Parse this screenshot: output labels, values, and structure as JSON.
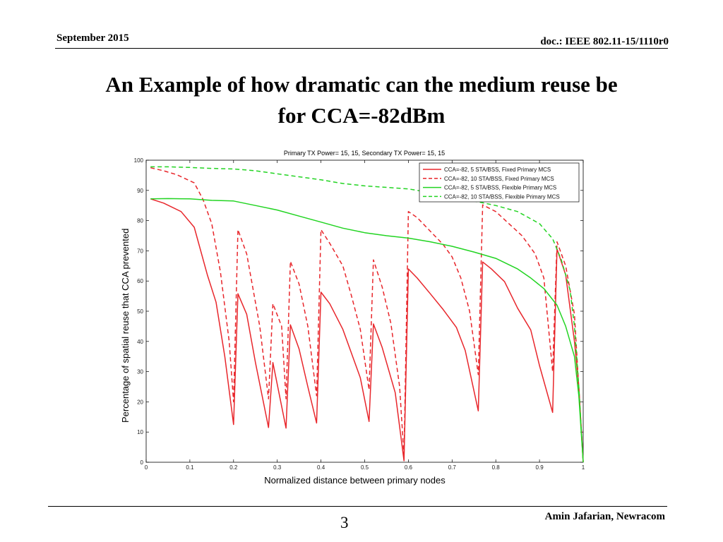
{
  "header": {
    "date": "September 2015",
    "doc": "doc.: IEEE 802.11-15/1110r0"
  },
  "slide": {
    "title_line1": "An Example of how dramatic can the medium reuse be",
    "title_line2": "for CCA=-82dBm"
  },
  "footer": {
    "page": "3",
    "author": "Amin Jafarian, Newracom"
  },
  "chart_data": {
    "type": "line",
    "title": "Primary TX Power= 15, 15, Secondary TX Power= 15, 15",
    "xlabel": "Normalized distance between primary nodes",
    "ylabel": "Percentage of spatial reuse that CCA prevented",
    "xlim": [
      0,
      1
    ],
    "ylim": [
      0,
      100
    ],
    "xticks": [
      0,
      0.1,
      0.2,
      0.3,
      0.4,
      0.5,
      0.6,
      0.7,
      0.8,
      0.9,
      1
    ],
    "yticks": [
      0,
      10,
      20,
      30,
      40,
      50,
      60,
      70,
      80,
      90,
      100
    ],
    "grid": false,
    "legend_position": "top-right",
    "series": [
      {
        "name": "CCA=-82, 5 STA/BSS, Fixed Primary MCS",
        "color": "#e8262b",
        "dash": "solid",
        "points": [
          [
            0.01,
            87.2
          ],
          [
            0.04,
            85.8
          ],
          [
            0.08,
            83
          ],
          [
            0.11,
            77.8
          ],
          [
            0.14,
            62
          ],
          [
            0.16,
            53
          ],
          [
            0.18,
            35
          ],
          [
            0.2,
            12.5
          ],
          [
            0.21,
            55.8
          ],
          [
            0.23,
            49
          ],
          [
            0.25,
            33
          ],
          [
            0.28,
            11.5
          ],
          [
            0.29,
            33
          ],
          [
            0.32,
            11.3
          ],
          [
            0.33,
            45.5
          ],
          [
            0.35,
            37.5
          ],
          [
            0.37,
            25
          ],
          [
            0.39,
            13
          ],
          [
            0.4,
            56.3
          ],
          [
            0.42,
            52.5
          ],
          [
            0.45,
            44
          ],
          [
            0.49,
            28
          ],
          [
            0.51,
            13.5
          ],
          [
            0.52,
            45.8
          ],
          [
            0.54,
            38
          ],
          [
            0.57,
            23
          ],
          [
            0.59,
            0.5
          ],
          [
            0.6,
            64
          ],
          [
            0.62,
            61
          ],
          [
            0.65,
            55.8
          ],
          [
            0.68,
            50.5
          ],
          [
            0.71,
            44.6
          ],
          [
            0.73,
            37
          ],
          [
            0.76,
            17
          ],
          [
            0.77,
            66.3
          ],
          [
            0.79,
            64
          ],
          [
            0.82,
            59.8
          ],
          [
            0.85,
            51
          ],
          [
            0.88,
            43.8
          ],
          [
            0.9,
            32
          ],
          [
            0.93,
            16.5
          ],
          [
            0.94,
            70.6
          ],
          [
            0.96,
            62
          ],
          [
            0.98,
            40
          ],
          [
            0.99,
            25
          ],
          [
            1,
            0
          ]
        ]
      },
      {
        "name": "CCA=-82, 10 STA/BSS, Fixed Primary MCS",
        "color": "#e8262b",
        "dash": "dashed",
        "points": [
          [
            0.01,
            97.5
          ],
          [
            0.04,
            96.5
          ],
          [
            0.07,
            95.2
          ],
          [
            0.11,
            92.5
          ],
          [
            0.13,
            87
          ],
          [
            0.15,
            79
          ],
          [
            0.17,
            63
          ],
          [
            0.19,
            40
          ],
          [
            0.2,
            20
          ],
          [
            0.21,
            77
          ],
          [
            0.23,
            69
          ],
          [
            0.26,
            45
          ],
          [
            0.28,
            21
          ],
          [
            0.29,
            52.5
          ],
          [
            0.31,
            45
          ],
          [
            0.32,
            21
          ],
          [
            0.33,
            66.5
          ],
          [
            0.35,
            59
          ],
          [
            0.37,
            45
          ],
          [
            0.39,
            22
          ],
          [
            0.4,
            77
          ],
          [
            0.42,
            72.5
          ],
          [
            0.45,
            65
          ],
          [
            0.47,
            55
          ],
          [
            0.49,
            44
          ],
          [
            0.51,
            24
          ],
          [
            0.52,
            67
          ],
          [
            0.54,
            58
          ],
          [
            0.56,
            46
          ],
          [
            0.58,
            25
          ],
          [
            0.59,
            2
          ],
          [
            0.6,
            83
          ],
          [
            0.62,
            81
          ],
          [
            0.65,
            76.5
          ],
          [
            0.68,
            72
          ],
          [
            0.7,
            68
          ],
          [
            0.72,
            61
          ],
          [
            0.74,
            50
          ],
          [
            0.76,
            29
          ],
          [
            0.77,
            85.2
          ],
          [
            0.8,
            83
          ],
          [
            0.83,
            79
          ],
          [
            0.86,
            75
          ],
          [
            0.89,
            69
          ],
          [
            0.91,
            61
          ],
          [
            0.93,
            30
          ],
          [
            0.94,
            73
          ],
          [
            0.96,
            65
          ],
          [
            0.98,
            49
          ],
          [
            1,
            0
          ]
        ]
      },
      {
        "name": "CCA=-82, 5 STA/BSS, Flexible Primary MCS",
        "color": "#22d422",
        "dash": "solid",
        "points": [
          [
            0.01,
            87.2
          ],
          [
            0.05,
            87.3
          ],
          [
            0.1,
            87.2
          ],
          [
            0.15,
            86.7
          ],
          [
            0.2,
            86.5
          ],
          [
            0.25,
            85
          ],
          [
            0.3,
            83.5
          ],
          [
            0.35,
            81.5
          ],
          [
            0.4,
            79.5
          ],
          [
            0.45,
            77.5
          ],
          [
            0.5,
            76
          ],
          [
            0.55,
            75
          ],
          [
            0.6,
            74.2
          ],
          [
            0.65,
            73
          ],
          [
            0.7,
            71.5
          ],
          [
            0.75,
            69.6
          ],
          [
            0.8,
            67.5
          ],
          [
            0.85,
            64
          ],
          [
            0.88,
            61
          ],
          [
            0.91,
            57.5
          ],
          [
            0.94,
            52
          ],
          [
            0.96,
            45
          ],
          [
            0.98,
            35
          ],
          [
            0.99,
            22
          ],
          [
            1,
            0
          ]
        ]
      },
      {
        "name": "CCA=-82, 10 STA/BSS, Flexible Primary MCS",
        "color": "#22d422",
        "dash": "dashed",
        "points": [
          [
            0.01,
            97.8
          ],
          [
            0.05,
            97.8
          ],
          [
            0.1,
            97.6
          ],
          [
            0.15,
            97.3
          ],
          [
            0.2,
            97.1
          ],
          [
            0.25,
            96.5
          ],
          [
            0.3,
            95.5
          ],
          [
            0.35,
            94.5
          ],
          [
            0.4,
            93.5
          ],
          [
            0.45,
            92.3
          ],
          [
            0.5,
            91.5
          ],
          [
            0.55,
            91
          ],
          [
            0.6,
            90.5
          ],
          [
            0.65,
            89.3
          ],
          [
            0.7,
            88
          ],
          [
            0.75,
            86.5
          ],
          [
            0.8,
            85
          ],
          [
            0.85,
            83
          ],
          [
            0.9,
            79
          ],
          [
            0.93,
            74
          ],
          [
            0.95,
            67
          ],
          [
            0.97,
            57
          ],
          [
            0.98,
            45
          ],
          [
            0.99,
            25
          ],
          [
            1,
            0
          ]
        ]
      }
    ]
  }
}
